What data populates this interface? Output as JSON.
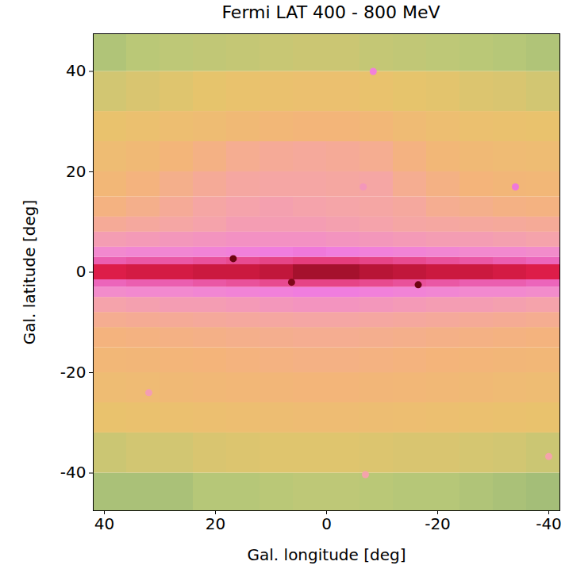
{
  "chart_data": {
    "type": "heatmap",
    "title": "Fermi LAT 400 - 800 MeV",
    "x_label": "Gal. longitude [deg]",
    "y_label": "Gal. latitude [deg]",
    "xlim": [
      42,
      -42
    ],
    "ylim": [
      -47.5,
      47.5
    ],
    "xticks": [
      40,
      20,
      0,
      -20,
      -40
    ],
    "yticks": [
      40,
      20,
      0,
      -20,
      -40
    ],
    "zlim": [
      0,
      100
    ],
    "colormap": [
      "#5f9e7a",
      "#b8c878",
      "#e8c46c",
      "#f4b47a",
      "#f5a5a8",
      "#f07ce0",
      "#e01e4a",
      "#5a0008"
    ],
    "lon_edges": [
      42,
      36,
      30,
      24,
      18,
      12,
      6,
      0,
      -6,
      -12,
      -18,
      -24,
      -30,
      -36,
      -42
    ],
    "lat_edges": [
      -47.5,
      -40,
      -32,
      -26,
      -20,
      -15,
      -11,
      -8,
      -5,
      -3,
      -1.5,
      1.5,
      3,
      5,
      8,
      11,
      15,
      20,
      26,
      32,
      40,
      47.5
    ],
    "cells": [
      [
        12,
        12,
        12,
        14,
        14,
        15,
        16,
        16,
        15,
        14,
        14,
        13,
        12,
        11
      ],
      [
        20,
        22,
        22,
        24,
        25,
        26,
        26,
        26,
        25,
        24,
        24,
        23,
        22,
        20
      ],
      [
        30,
        31,
        32,
        33,
        34,
        35,
        36,
        36,
        35,
        34,
        33,
        32,
        31,
        30
      ],
      [
        36,
        37,
        38,
        39,
        40,
        41,
        42,
        42,
        41,
        40,
        39,
        38,
        37,
        36
      ],
      [
        40,
        41,
        42,
        43,
        44,
        45,
        46,
        46,
        45,
        44,
        43,
        42,
        41,
        40
      ],
      [
        44,
        45,
        46,
        47,
        48,
        49,
        50,
        50,
        49,
        48,
        47,
        46,
        45,
        44
      ],
      [
        50,
        51,
        52,
        53,
        54,
        55,
        56,
        56,
        55,
        54,
        53,
        52,
        51,
        50
      ],
      [
        58,
        59,
        60,
        60,
        61,
        62,
        63,
        63,
        62,
        61,
        60,
        60,
        59,
        58
      ],
      [
        66,
        67,
        67,
        68,
        69,
        70,
        71,
        71,
        70,
        69,
        68,
        67,
        67,
        66
      ],
      [
        75,
        76,
        76,
        77,
        78,
        79,
        80,
        80,
        79,
        78,
        77,
        76,
        76,
        75
      ],
      [
        86,
        87,
        87,
        88,
        88,
        89,
        92,
        92,
        90,
        89,
        88,
        88,
        87,
        86
      ],
      [
        76,
        77,
        77,
        78,
        79,
        80,
        81,
        81,
        80,
        79,
        78,
        77,
        76,
        75
      ],
      [
        67,
        68,
        68,
        69,
        70,
        71,
        72,
        71,
        70,
        69,
        68,
        67,
        67,
        66
      ],
      [
        60,
        61,
        62,
        63,
        64,
        64,
        64,
        63,
        62,
        61,
        60,
        60,
        59,
        58
      ],
      [
        52,
        54,
        56,
        58,
        60,
        60,
        60,
        59,
        58,
        56,
        55,
        54,
        53,
        52
      ],
      [
        45,
        48,
        52,
        56,
        58,
        59,
        58,
        57,
        56,
        54,
        50,
        48,
        46,
        45
      ],
      [
        40,
        44,
        48,
        52,
        55,
        56,
        56,
        55,
        56,
        50,
        46,
        43,
        41,
        40
      ],
      [
        36,
        38,
        42,
        46,
        50,
        52,
        53,
        52,
        50,
        45,
        40,
        38,
        37,
        36
      ],
      [
        30,
        32,
        34,
        36,
        38,
        40,
        42,
        42,
        40,
        37,
        34,
        32,
        31,
        30
      ],
      [
        22,
        24,
        26,
        28,
        30,
        31,
        32,
        32,
        30,
        28,
        27,
        25,
        24,
        22
      ],
      [
        13,
        15,
        16,
        17,
        18,
        19,
        20,
        20,
        18,
        17,
        16,
        15,
        14,
        13
      ]
    ],
    "sources": {
      "lon": [
        -8.4,
        -34,
        -6.6,
        32,
        -7,
        -40,
        16.8,
        -16.5,
        6.3
      ],
      "lat": [
        40,
        17,
        17,
        -24,
        -40.3,
        -36.7,
        2.7,
        -2.5,
        -2
      ],
      "values": [
        70,
        72,
        62,
        60,
        58,
        58,
        98,
        98,
        96
      ]
    }
  }
}
